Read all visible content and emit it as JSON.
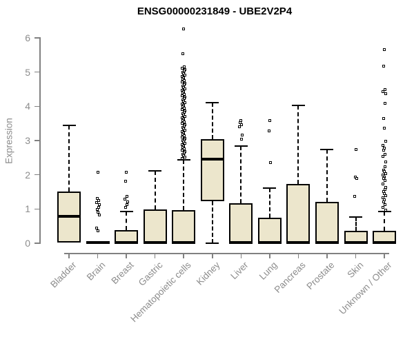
{
  "chart_data": {
    "type": "boxplot",
    "title": "ENSG00000231849 - UBE2V2P4",
    "ylabel": "Expression",
    "xlabel": "",
    "ylim": [
      0,
      6.5
    ],
    "yticks": [
      "0",
      "1",
      "2",
      "3",
      "4",
      "5",
      "6"
    ],
    "grid": false,
    "legend": "none",
    "x_label_rotation_deg": 45,
    "colors": {
      "box_fill": "#ece6cc",
      "box_border": "#000000",
      "axis_line": "#808080",
      "axis_text": "#8c8c8c",
      "title_text": "#000000",
      "outlier_fill": "#ffffff"
    },
    "categories": [
      "Bladder",
      "Brain",
      "Breast",
      "Gastric",
      "Hematopoietic cells",
      "Kidney",
      "Liver",
      "Lung",
      "Pancreas",
      "Prostate",
      "Skin",
      "Unknown / Other"
    ],
    "series": [
      {
        "name": "Bladder",
        "low": 0,
        "q1": 0.03,
        "median": 0.78,
        "q3": 1.51,
        "high": 3.44,
        "outliers": []
      },
      {
        "name": "Brain",
        "low": 0,
        "q1": 0,
        "median": 0.03,
        "q3": 0.07,
        "high": 0.07,
        "outliers": [
          2.07,
          1.3,
          1.24,
          1.18,
          1.12,
          1.05,
          0.98,
          0.9,
          0.83,
          0.45,
          0.36
        ]
      },
      {
        "name": "Breast",
        "low": 0,
        "q1": 0,
        "median": 0.02,
        "q3": 0.38,
        "high": 0.93,
        "outliers": [
          2.07,
          1.81,
          1.37,
          1.29,
          1.21,
          1.13,
          1.05
        ]
      },
      {
        "name": "Gastric",
        "low": 0,
        "q1": 0,
        "median": 0.03,
        "q3": 0.99,
        "high": 2.11,
        "outliers": []
      },
      {
        "name": "Hematopoietic cells",
        "low": 0,
        "q1": 0,
        "median": 0.03,
        "q3": 0.97,
        "high": 2.43,
        "outliers": [
          6.26,
          5.54,
          5.15,
          5.11,
          5.07,
          5.03,
          4.99,
          4.95,
          4.91,
          4.87,
          4.83,
          4.79,
          4.75,
          4.71,
          4.67,
          4.63,
          4.59,
          4.55,
          4.51,
          4.47,
          4.43,
          4.39,
          4.35,
          4.31,
          4.27,
          4.23,
          4.19,
          4.15,
          4.11,
          4.07,
          4.03,
          3.99,
          3.95,
          3.91,
          3.87,
          3.83,
          3.79,
          3.75,
          3.71,
          3.67,
          3.63,
          3.59,
          3.55,
          3.51,
          3.47,
          3.43,
          3.39,
          3.35,
          3.31,
          3.27,
          3.23,
          3.19,
          3.15,
          3.11,
          3.07,
          3.03,
          2.99,
          2.95,
          2.91,
          2.87,
          2.83,
          2.79,
          2.75,
          2.71,
          2.67,
          2.63,
          2.59,
          2.55,
          2.51,
          2.47
        ]
      },
      {
        "name": "Kidney",
        "low": 0,
        "q1": 1.23,
        "median": 2.45,
        "q3": 3.04,
        "high": 4.1,
        "outliers": []
      },
      {
        "name": "Liver",
        "low": 0,
        "q1": 0,
        "median": 0.03,
        "q3": 1.17,
        "high": 2.84,
        "outliers": [
          3.58,
          3.52,
          3.46,
          3.4,
          3.16,
          3.05
        ]
      },
      {
        "name": "Lung",
        "low": 0,
        "q1": 0,
        "median": 0.03,
        "q3": 0.75,
        "high": 1.61,
        "outliers": [
          3.58,
          3.28,
          2.35
        ]
      },
      {
        "name": "Pancreas",
        "low": 0,
        "q1": 0,
        "median": 0.03,
        "q3": 1.74,
        "high": 4.02,
        "outliers": []
      },
      {
        "name": "Prostate",
        "low": 0,
        "q1": 0,
        "median": 0.03,
        "q3": 1.2,
        "high": 2.74,
        "outliers": []
      },
      {
        "name": "Skin",
        "low": 0,
        "q1": 0,
        "median": 0.02,
        "q3": 0.36,
        "high": 0.76,
        "outliers": [
          2.74,
          1.93,
          1.89,
          1.37
        ]
      },
      {
        "name": "Unknown / Other",
        "low": 0,
        "q1": 0,
        "median": 0.02,
        "q3": 0.36,
        "high": 0.93,
        "outliers": [
          5.65,
          5.17,
          4.49,
          4.43,
          4.37,
          4.08,
          3.64,
          3.36,
          2.98,
          2.86,
          2.78,
          2.72,
          2.6,
          2.53,
          2.38,
          2.24,
          2.14,
          2.09,
          2.04,
          1.99,
          1.94,
          1.89,
          1.84,
          1.74,
          1.63,
          1.57,
          1.51,
          1.45,
          1.39,
          1.33,
          1.27,
          1.21,
          1.12,
          1.04,
          0.97
        ]
      }
    ]
  }
}
